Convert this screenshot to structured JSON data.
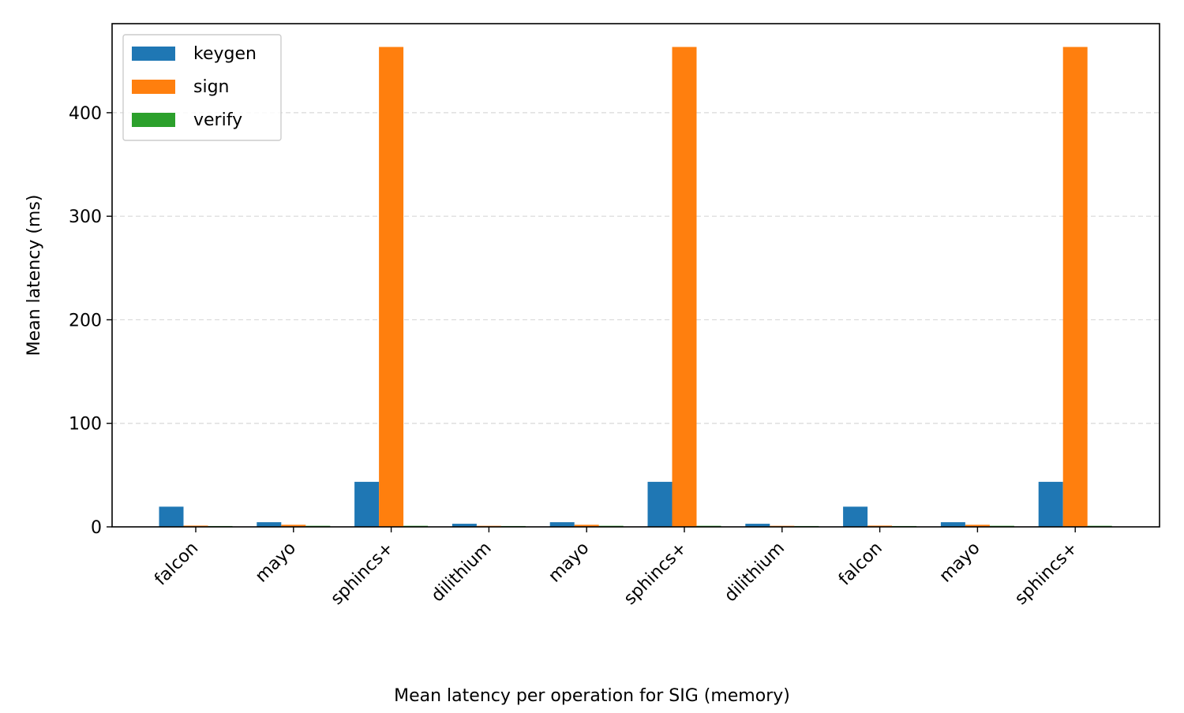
{
  "chart_data": {
    "type": "bar",
    "title": "",
    "xlabel": "Mean latency per operation for SIG (memory)",
    "ylabel": "Mean latency (ms)",
    "categories": [
      "falcon",
      "mayo",
      "sphincs+",
      "dilithium",
      "mayo",
      "sphincs+",
      "dilithium",
      "falcon",
      "mayo",
      "sphincs+"
    ],
    "series": [
      {
        "name": "keygen",
        "color": "#1f77b4",
        "values": [
          19.5,
          4.5,
          43.5,
          3.0,
          4.5,
          43.5,
          3.0,
          19.5,
          4.5,
          43.5
        ]
      },
      {
        "name": "sign",
        "color": "#ff7f0e",
        "values": [
          1.2,
          2.0,
          463.5,
          1.0,
          2.0,
          463.5,
          1.0,
          1.2,
          2.0,
          463.5
        ]
      },
      {
        "name": "verify",
        "color": "#2ca02c",
        "values": [
          0.8,
          1.0,
          1.0,
          0.8,
          1.0,
          1.0,
          0.8,
          0.8,
          1.0,
          1.0
        ]
      }
    ],
    "yticks": [
      0,
      100,
      200,
      300,
      400
    ],
    "ylim": [
      0,
      486
    ],
    "grid": "y-dashed",
    "legend": "top-left"
  }
}
